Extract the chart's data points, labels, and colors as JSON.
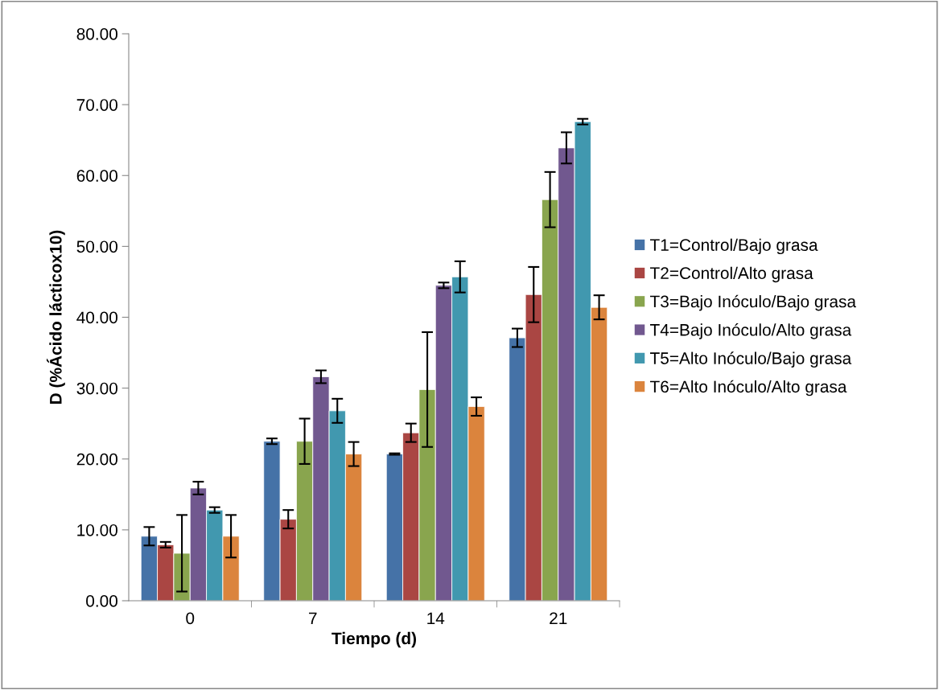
{
  "chart_data": {
    "type": "bar",
    "xlabel": "Tiempo (d)",
    "ylabel": "D (%Ácido lácticox10)",
    "categories": [
      "0",
      "7",
      "14",
      "21"
    ],
    "series": [
      {
        "name": "T1=Control/Bajo grasa",
        "color": "#4572a7",
        "values": [
          9.1,
          22.5,
          20.7,
          37.1
        ],
        "errors": [
          1.3,
          0.4,
          0.1,
          1.3
        ]
      },
      {
        "name": "T2=Control/Alto grasa",
        "color": "#aa4643",
        "values": [
          7.9,
          11.5,
          23.7,
          43.2
        ],
        "errors": [
          0.4,
          1.3,
          1.3,
          3.9
        ]
      },
      {
        "name": "T3=Bajo Inóculo/Bajo grasa",
        "color": "#89a54e",
        "values": [
          6.7,
          22.5,
          29.8,
          56.6
        ],
        "errors": [
          5.4,
          3.2,
          8.1,
          3.9
        ]
      },
      {
        "name": "T4=Bajo Inóculo/Alto grasa",
        "color": "#71588f",
        "values": [
          15.9,
          31.6,
          44.5,
          63.9
        ],
        "errors": [
          0.9,
          0.9,
          0.4,
          2.2
        ]
      },
      {
        "name": "T5=Alto Inóculo/Bajo grasa",
        "color": "#4198af",
        "values": [
          12.8,
          26.8,
          45.7,
          67.6
        ],
        "errors": [
          0.4,
          1.7,
          2.2,
          0.4
        ]
      },
      {
        "name": "T6=Alto Inóculo/Alto grasa",
        "color": "#db843d",
        "values": [
          9.1,
          20.7,
          27.4,
          41.4
        ],
        "errors": [
          3.0,
          1.7,
          1.3,
          1.7
        ]
      }
    ],
    "ylim": [
      0,
      80
    ],
    "yticks": [
      {
        "value": 0,
        "label": "0.00"
      },
      {
        "value": 10,
        "label": "10.00"
      },
      {
        "value": 20,
        "label": "20.00"
      },
      {
        "value": 30,
        "label": "30.00"
      },
      {
        "value": 40,
        "label": "40.00"
      },
      {
        "value": 50,
        "label": "50.00"
      },
      {
        "value": 60,
        "label": "60.00"
      },
      {
        "value": 70,
        "label": "70.00"
      },
      {
        "value": 80,
        "label": "80.00"
      }
    ],
    "grid": false,
    "legend": "right"
  }
}
